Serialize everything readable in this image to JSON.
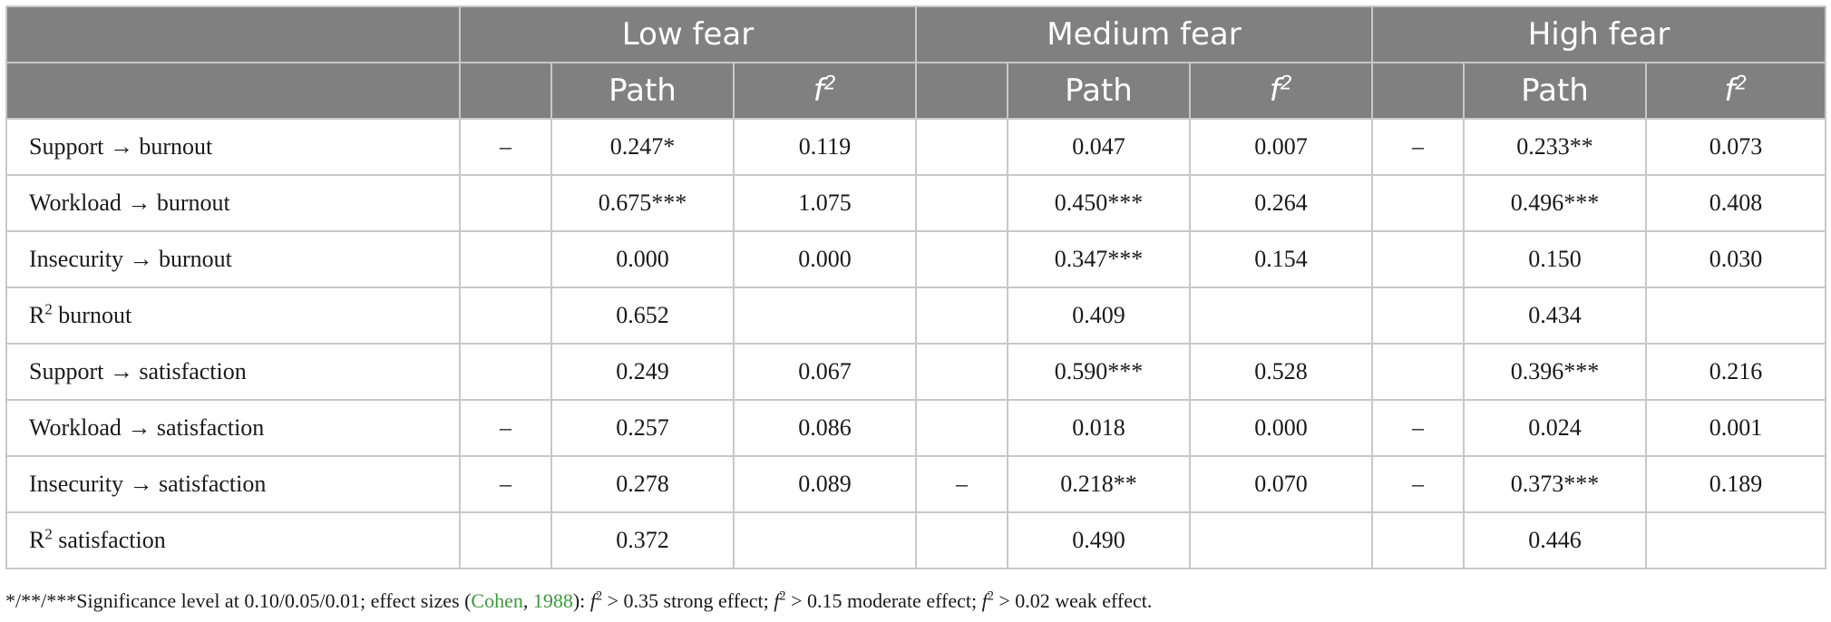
{
  "table": {
    "groups": [
      "Low fear",
      "Medium fear",
      "High fear"
    ],
    "sub_path": "Path",
    "sub_f": "f",
    "sub_f_sup": "2",
    "rows": [
      {
        "label": "Support → burnout",
        "label_sup": "",
        "label_tail": "",
        "low": [
          "–",
          "0.247*",
          "0.119"
        ],
        "med": [
          "",
          "0.047",
          "0.007"
        ],
        "high": [
          "–",
          "0.233**",
          "0.073"
        ]
      },
      {
        "label": "Workload → burnout",
        "label_sup": "",
        "label_tail": "",
        "low": [
          "",
          "0.675***",
          "1.075"
        ],
        "med": [
          "",
          "0.450***",
          "0.264"
        ],
        "high": [
          "",
          "0.496***",
          "0.408"
        ]
      },
      {
        "label": "Insecurity → burnout",
        "label_sup": "",
        "label_tail": "",
        "low": [
          "",
          "0.000",
          "0.000"
        ],
        "med": [
          "",
          "0.347***",
          "0.154"
        ],
        "high": [
          "",
          "0.150",
          "0.030"
        ]
      },
      {
        "label": "R",
        "label_sup": "2",
        "label_tail": " burnout",
        "low": [
          "",
          "0.652",
          ""
        ],
        "med": [
          "",
          "0.409",
          ""
        ],
        "high": [
          "",
          "0.434",
          ""
        ]
      },
      {
        "label": "Support → satisfaction",
        "label_sup": "",
        "label_tail": "",
        "low": [
          "",
          "0.249",
          "0.067"
        ],
        "med": [
          "",
          "0.590***",
          "0.528"
        ],
        "high": [
          "",
          "0.396***",
          "0.216"
        ]
      },
      {
        "label": "Workload → satisfaction",
        "label_sup": "",
        "label_tail": "",
        "low": [
          "–",
          "0.257",
          "0.086"
        ],
        "med": [
          "",
          "0.018",
          "0.000"
        ],
        "high": [
          "–",
          "0.024",
          "0.001"
        ]
      },
      {
        "label": "Insecurity → satisfaction",
        "label_sup": "",
        "label_tail": "",
        "low": [
          "–",
          "0.278",
          "0.089"
        ],
        "med": [
          "–",
          "0.218**",
          "0.070"
        ],
        "high": [
          "–",
          "0.373***",
          "0.189"
        ]
      },
      {
        "label": "R",
        "label_sup": "2",
        "label_tail": " satisfaction",
        "low": [
          "",
          "0.372",
          ""
        ],
        "med": [
          "",
          "0.490",
          ""
        ],
        "high": [
          "",
          "0.446",
          ""
        ]
      }
    ]
  },
  "footnote": {
    "lead": "*/**/***Significance level at 0.10/0.05/0.01; effect sizes (",
    "cite_author": "Cohen",
    "cite_sep": ", ",
    "cite_year": "1988",
    "after_cite": "): ",
    "f": "f",
    "sup": "2",
    "strong": " > 0.35 strong effect; ",
    "moderate": " > 0.15 moderate effect; ",
    "weak": " > 0.02 weak effect.",
    "link_color": "#3a9a3a"
  },
  "colors": {
    "header_bg": "#808080",
    "grid": "#c8c8c8"
  }
}
